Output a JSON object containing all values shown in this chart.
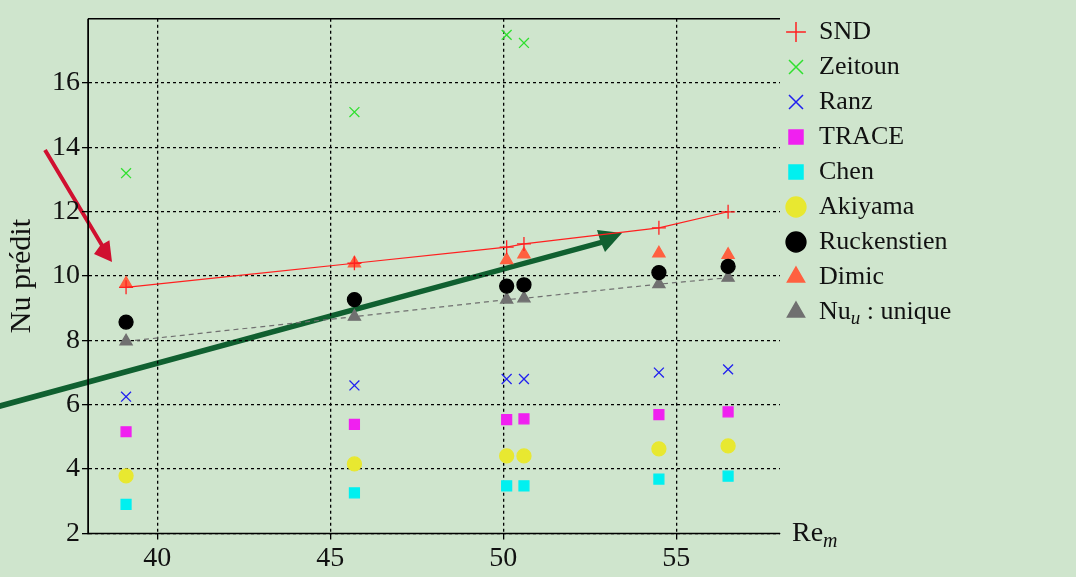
{
  "chart_data": {
    "type": "scatter",
    "xlabel": "Re$_{m}$",
    "ylabel": "Nu prédit",
    "xlim": [
      38,
      58
    ],
    "ylim": [
      2,
      18
    ],
    "xticks": [
      40,
      45,
      50,
      55
    ],
    "yticks": [
      2,
      4,
      6,
      8,
      10,
      12,
      14,
      16
    ],
    "grid": true,
    "legend": "top right",
    "x": [
      39.1,
      45.7,
      50.1,
      50.6,
      54.5,
      56.5
    ],
    "series": [
      {
        "name": "SND",
        "type": "line",
        "marker": "cross",
        "line_style": "solid",
        "color": "#ff2020",
        "values": [
          9.65,
          10.4,
          10.9,
          11.0,
          11.5,
          12.0
        ]
      },
      {
        "name": "Zeitoun",
        "marker": "cross",
        "color": "#30e030",
        "x": [
          39.1,
          45.7,
          50.1,
          50.6
        ],
        "values": [
          13.2,
          15.1,
          17.5,
          17.25
        ]
      },
      {
        "name": "Ranz",
        "marker": "cross",
        "color": "#2020f0",
        "values": [
          6.25,
          6.6,
          6.8,
          6.8,
          7.0,
          7.1
        ]
      },
      {
        "name": "TRACE",
        "marker": "square",
        "color": "#f020f0",
        "values": [
          5.16,
          5.39,
          5.54,
          5.56,
          5.69,
          5.78
        ]
      },
      {
        "name": "Chen",
        "marker": "square",
        "color": "#00f0f0",
        "values": [
          2.9,
          3.26,
          3.48,
          3.48,
          3.69,
          3.78
        ]
      },
      {
        "name": "Akiyama",
        "marker": "circle",
        "color": "#e8e830",
        "values": [
          3.79,
          4.16,
          4.41,
          4.41,
          4.63,
          4.72
        ]
      },
      {
        "name": "Ruckenstien",
        "marker": "circle",
        "color": "#000000",
        "values": [
          8.57,
          9.27,
          9.69,
          9.73,
          10.11,
          10.3
        ]
      },
      {
        "name": "Dimic",
        "marker": "triangle",
        "color": "#ff6040",
        "values": [
          9.77,
          10.4,
          10.5,
          10.68,
          10.71,
          10.66
        ]
      },
      {
        "name": "Nu$_{u}$ : unique",
        "type": "line",
        "marker": "triangle",
        "line_style": "dashed",
        "color": "#707070",
        "values": [
          7.97,
          8.74,
          9.27,
          9.31,
          9.75,
          9.95
        ]
      }
    ]
  }
}
